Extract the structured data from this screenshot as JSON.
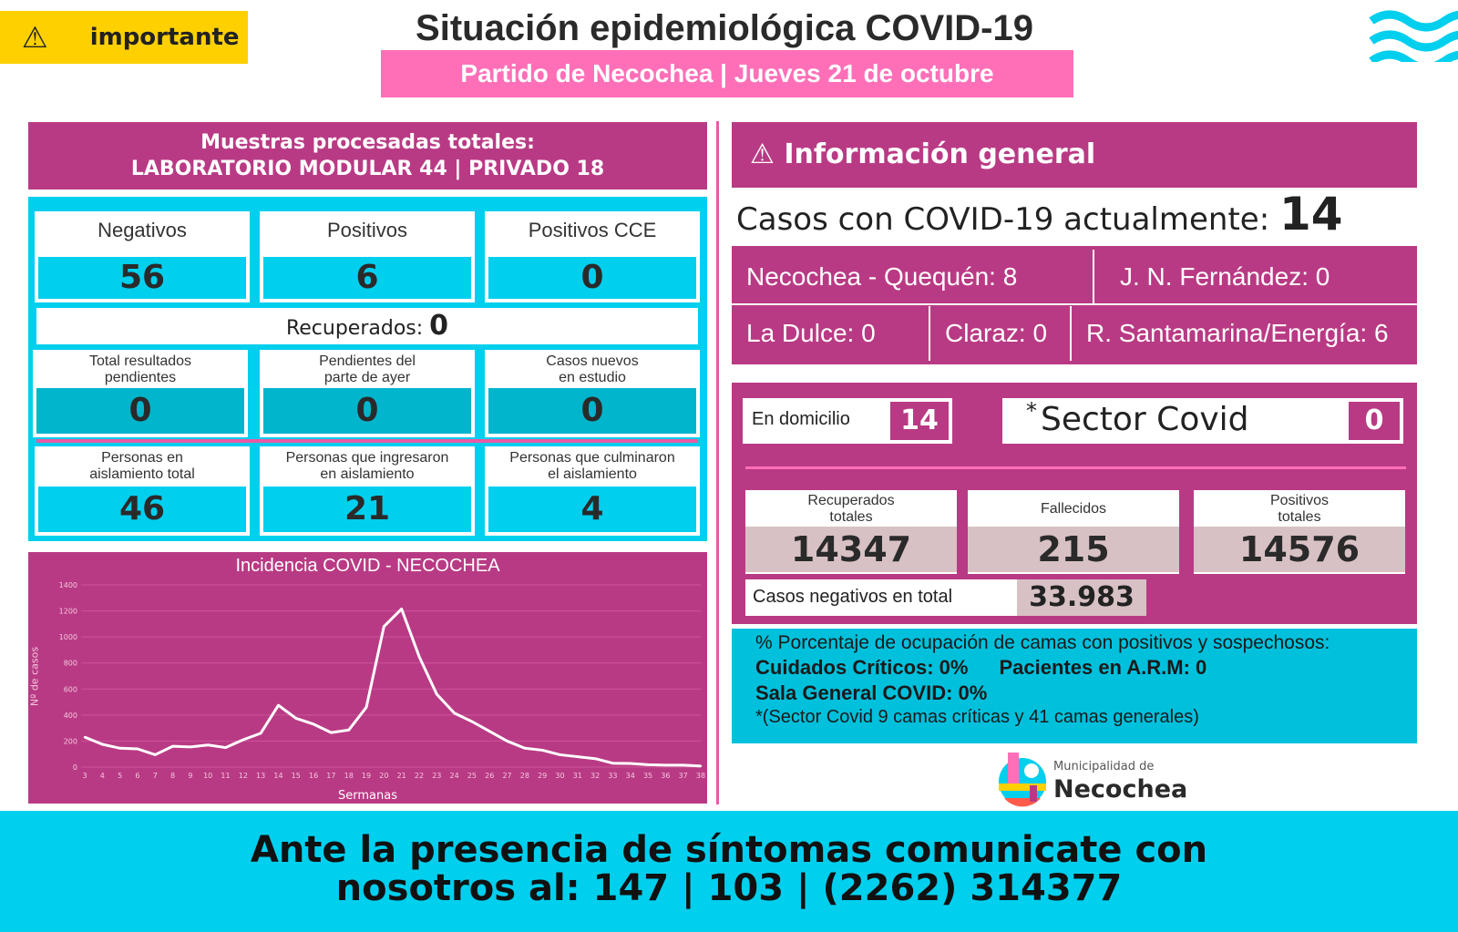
{
  "header": {
    "badge_label": "importante",
    "title": "Situación epidemiológica COVID-19",
    "subtitle": "Partido de Necochea | Jueves 21 de octubre"
  },
  "colors": {
    "magenta": "#b93a84",
    "cyan": "#00cfee",
    "pink": "#ff6fb8",
    "yellow": "#ffd000"
  },
  "muestras": {
    "title_line1": "Muestras procesadas totales:",
    "title_line2": "LABORATORIO MODULAR 44 | PRIVADO 18",
    "negativos": {
      "label": "Negativos",
      "value": "56"
    },
    "positivos": {
      "label": "Positivos",
      "value": "6"
    },
    "positivos_cce": {
      "label": "Positivos CCE",
      "value": "0"
    },
    "recuperados": {
      "label": "Recuperados:",
      "value": "0"
    },
    "pendientes_total": {
      "label1": "Total resultados",
      "label2": "pendientes",
      "value": "0"
    },
    "pendientes_ayer": {
      "label1": "Pendientes del",
      "label2": "parte de ayer",
      "value": "0"
    },
    "casos_estudio": {
      "label1": "Casos nuevos",
      "label2": "en estudio",
      "value": "0"
    },
    "aislamiento_total": {
      "label1": "Personas en",
      "label2": "aislamiento total",
      "value": "46"
    },
    "ingresaron": {
      "label1": "Personas que ingresaron",
      "label2": "en aislamiento",
      "value": "21"
    },
    "culminaron": {
      "label1": "Personas que culminaron",
      "label2": "el aislamiento",
      "value": "4"
    }
  },
  "chart_data": {
    "type": "line",
    "title": "Incidencia COVID - NECOCHEA",
    "xlabel": "Sermanas",
    "ylabel": "Nº de casos",
    "ylim": [
      0,
      1400
    ],
    "yticks": [
      0,
      200,
      400,
      600,
      800,
      1000,
      1200,
      1400
    ],
    "x": [
      3,
      4,
      5,
      6,
      7,
      8,
      9,
      10,
      11,
      12,
      13,
      14,
      15,
      16,
      17,
      18,
      19,
      20,
      21,
      22,
      23,
      24,
      25,
      26,
      27,
      28,
      29,
      30,
      31,
      32,
      33,
      34,
      35,
      36,
      37,
      38
    ],
    "values": [
      230,
      175,
      145,
      140,
      95,
      160,
      155,
      170,
      150,
      210,
      260,
      475,
      375,
      330,
      265,
      285,
      460,
      1080,
      1215,
      850,
      560,
      415,
      350,
      275,
      200,
      145,
      130,
      95,
      80,
      65,
      30,
      28,
      18,
      15,
      15,
      8
    ],
    "grid": true
  },
  "info": {
    "title": "Información general",
    "actual_label": "Casos con COVID-19 actualmente:",
    "actual_value": "14",
    "localidades": [
      "Necochea - Quequén: 8",
      "J. N. Fernández: 0",
      "La Dulce: 0",
      "Claraz: 0",
      "R. Santamarina/Energía: 6"
    ],
    "domicilio": {
      "label": "En domicilio",
      "value": "14"
    },
    "sector": {
      "label": "Sector Covid",
      "mark": "*",
      "value": "0"
    },
    "recuperados": {
      "label1": "Recuperados",
      "label2": "totales",
      "value": "14347"
    },
    "fallecidos": {
      "label": "Fallecidos",
      "value": "215"
    },
    "positivos": {
      "label1": "Positivos",
      "label2": "totales",
      "value": "14576"
    },
    "negativos": {
      "label": "Casos negativos en total",
      "value": "33.983"
    }
  },
  "camas": {
    "line1": "% Porcentaje de ocupación de camas con positivos y sospechosos:",
    "criticos": "Cuidados Críticos: 0%",
    "arm": "Pacientes en A.R.M: 0",
    "sala": "Sala General COVID: 0%",
    "nota": "*(Sector Covid 9 camas críticas y  41 camas generales)"
  },
  "logo": {
    "line1": "Municipalidad de",
    "line2": "Necochea"
  },
  "footer": {
    "line1": "Ante la presencia de síntomas comunicate con",
    "line2": "nosotros al: 147 | 103 | (2262) 314377"
  }
}
